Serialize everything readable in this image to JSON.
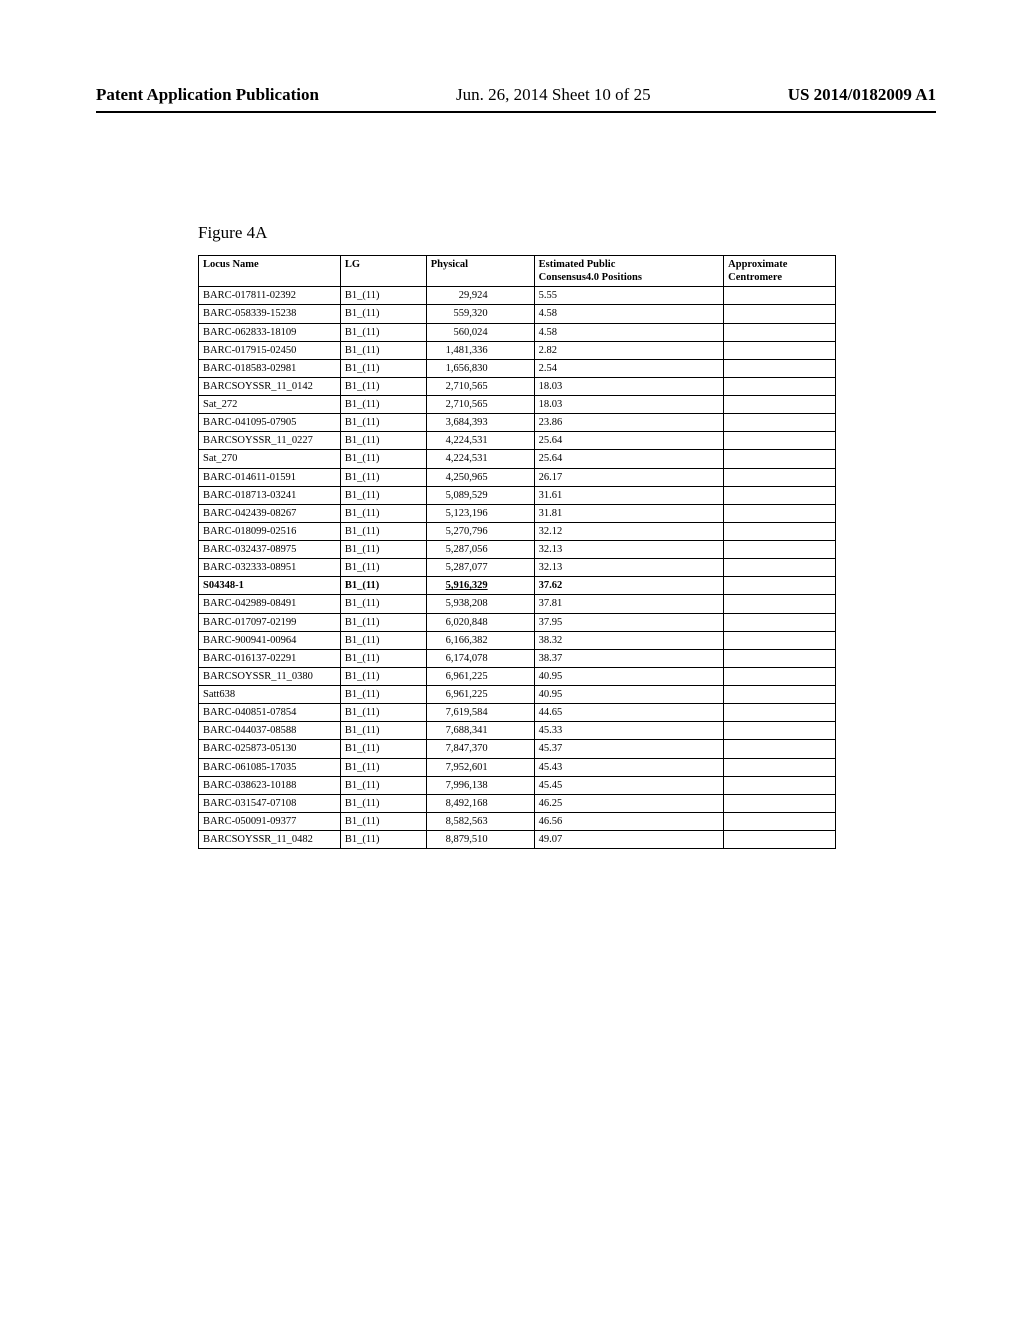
{
  "header": {
    "left": "Patent Application Publication",
    "mid": "Jun. 26, 2014  Sheet 10 of 25",
    "right": "US 2014/0182009 A1"
  },
  "figure_label": "Figure 4A",
  "table": {
    "columns": {
      "locus": "Locus Name",
      "lg": "LG",
      "physical": "Physical",
      "positions_l1": "Estimated Public",
      "positions_l2": "Consensus4.0 Positions",
      "centromere_l1": "Approximate",
      "centromere_l2": "Centromere"
    },
    "rows": [
      {
        "locus": "BARC-017811-02392",
        "lg": "B1_(11)",
        "physical": "29,924",
        "pos": "5.55",
        "cent": "",
        "bold": false
      },
      {
        "locus": "BARC-058339-15238",
        "lg": "B1_(11)",
        "physical": "559,320",
        "pos": "4.58",
        "cent": "",
        "bold": false
      },
      {
        "locus": "BARC-062833-18109",
        "lg": "B1_(11)",
        "physical": "560,024",
        "pos": "4.58",
        "cent": "",
        "bold": false
      },
      {
        "locus": "BARC-017915-02450",
        "lg": "B1_(11)",
        "physical": "1,481,336",
        "pos": "2.82",
        "cent": "",
        "bold": false
      },
      {
        "locus": "BARC-018583-02981",
        "lg": "B1_(11)",
        "physical": "1,656,830",
        "pos": "2.54",
        "cent": "",
        "bold": false
      },
      {
        "locus": "BARCSOYSSR_11_0142",
        "lg": "B1_(11)",
        "physical": "2,710,565",
        "pos": "18.03",
        "cent": "",
        "bold": false
      },
      {
        "locus": "Sat_272",
        "lg": "B1_(11)",
        "physical": "2,710,565",
        "pos": "18.03",
        "cent": "",
        "bold": false
      },
      {
        "locus": "BARC-041095-07905",
        "lg": "B1_(11)",
        "physical": "3,684,393",
        "pos": "23.86",
        "cent": "",
        "bold": false
      },
      {
        "locus": "BARCSOYSSR_11_0227",
        "lg": "B1_(11)",
        "physical": "4,224,531",
        "pos": "25.64",
        "cent": "",
        "bold": false
      },
      {
        "locus": "Sat_270",
        "lg": "B1_(11)",
        "physical": "4,224,531",
        "pos": "25.64",
        "cent": "",
        "bold": false
      },
      {
        "locus": "BARC-014611-01591",
        "lg": "B1_(11)",
        "physical": "4,250,965",
        "pos": "26.17",
        "cent": "",
        "bold": false
      },
      {
        "locus": "BARC-018713-03241",
        "lg": "B1_(11)",
        "physical": "5,089,529",
        "pos": "31.61",
        "cent": "",
        "bold": false
      },
      {
        "locus": "BARC-042439-08267",
        "lg": "B1_(11)",
        "physical": "5,123,196",
        "pos": "31.81",
        "cent": "",
        "bold": false
      },
      {
        "locus": "BARC-018099-02516",
        "lg": "B1_(11)",
        "physical": "5,270,796",
        "pos": "32.12",
        "cent": "",
        "bold": false
      },
      {
        "locus": "BARC-032437-08975",
        "lg": "B1_(11)",
        "physical": "5,287,056",
        "pos": "32.13",
        "cent": "",
        "bold": false
      },
      {
        "locus": "BARC-032333-08951",
        "lg": "B1_(11)",
        "physical": "5,287,077",
        "pos": "32.13",
        "cent": "",
        "bold": false
      },
      {
        "locus": "S04348-1",
        "lg": "B1_(11)",
        "physical": "5,916,329",
        "pos": "37.62",
        "cent": "",
        "bold": true
      },
      {
        "locus": "BARC-042989-08491",
        "lg": "B1_(11)",
        "physical": "5,938,208",
        "pos": "37.81",
        "cent": "",
        "bold": false
      },
      {
        "locus": "BARC-017097-02199",
        "lg": "B1_(11)",
        "physical": "6,020,848",
        "pos": "37.95",
        "cent": "",
        "bold": false
      },
      {
        "locus": "BARC-900941-00964",
        "lg": "B1_(11)",
        "physical": "6,166,382",
        "pos": "38.32",
        "cent": "",
        "bold": false
      },
      {
        "locus": "BARC-016137-02291",
        "lg": "B1_(11)",
        "physical": "6,174,078",
        "pos": "38.37",
        "cent": "",
        "bold": false
      },
      {
        "locus": "BARCSOYSSR_11_0380",
        "lg": "B1_(11)",
        "physical": "6,961,225",
        "pos": "40.95",
        "cent": "",
        "bold": false
      },
      {
        "locus": "Satt638",
        "lg": "B1_(11)",
        "physical": "6,961,225",
        "pos": "40.95",
        "cent": "",
        "bold": false
      },
      {
        "locus": "BARC-040851-07854",
        "lg": "B1_(11)",
        "physical": "7,619,584",
        "pos": "44.65",
        "cent": "",
        "bold": false
      },
      {
        "locus": "BARC-044037-08588",
        "lg": "B1_(11)",
        "physical": "7,688,341",
        "pos": "45.33",
        "cent": "",
        "bold": false
      },
      {
        "locus": "BARC-025873-05130",
        "lg": "B1_(11)",
        "physical": "7,847,370",
        "pos": "45.37",
        "cent": "",
        "bold": false
      },
      {
        "locus": "BARC-061085-17035",
        "lg": "B1_(11)",
        "physical": "7,952,601",
        "pos": "45.43",
        "cent": "",
        "bold": false
      },
      {
        "locus": "BARC-038623-10188",
        "lg": "B1_(11)",
        "physical": "7,996,138",
        "pos": "45.45",
        "cent": "",
        "bold": false
      },
      {
        "locus": "BARC-031547-07108",
        "lg": "B1_(11)",
        "physical": "8,492,168",
        "pos": "46.25",
        "cent": "",
        "bold": false
      },
      {
        "locus": "BARC-050091-09377",
        "lg": "B1_(11)",
        "physical": "8,582,563",
        "pos": "46.56",
        "cent": "",
        "bold": false
      },
      {
        "locus": "BARCSOYSSR_11_0482",
        "lg": "B1_(11)",
        "physical": "8,879,510",
        "pos": "49.07",
        "cent": "",
        "bold": false
      }
    ]
  }
}
